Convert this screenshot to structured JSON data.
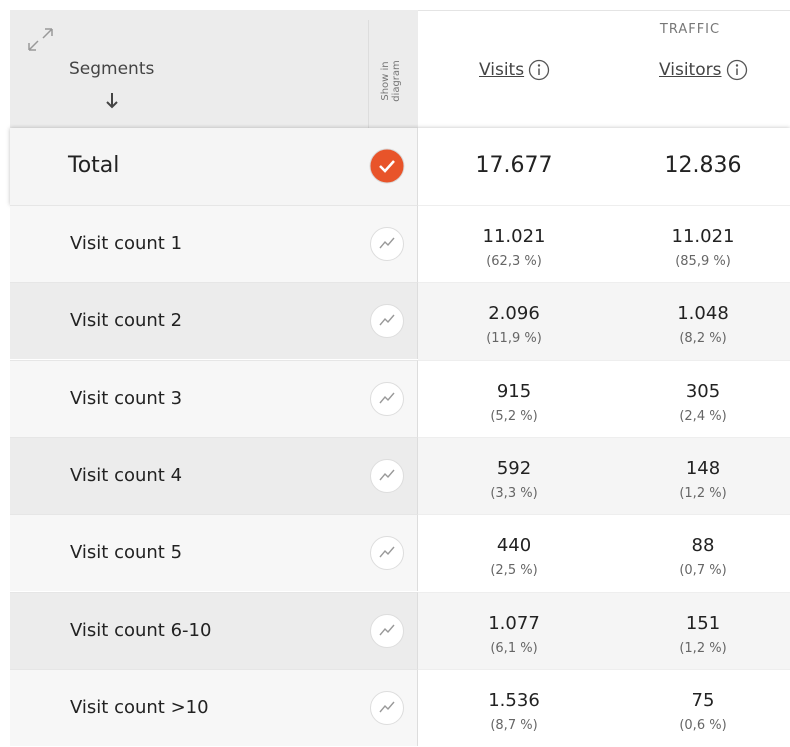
{
  "header": {
    "segments": "Segments",
    "show_in_diagram": "Show in diagram",
    "group": "TRAFFIC",
    "columns": [
      "Visits",
      "Visitors"
    ]
  },
  "total": {
    "label": "Total",
    "visits": "17.677",
    "visitors": "12.836"
  },
  "rows": [
    {
      "label": "Visit count 1",
      "visits": "11.021",
      "visits_share": "(62,3 %)",
      "visitors": "11.021",
      "visitors_share": "(85,9 %)"
    },
    {
      "label": "Visit count 2",
      "visits": "2.096",
      "visits_share": "(11,9 %)",
      "visitors": "1.048",
      "visitors_share": "(8,2 %)"
    },
    {
      "label": "Visit count 3",
      "visits": "915",
      "visits_share": "(5,2 %)",
      "visitors": "305",
      "visitors_share": "(2,4 %)"
    },
    {
      "label": "Visit count 4",
      "visits": "592",
      "visits_share": "(3,3 %)",
      "visitors": "148",
      "visitors_share": "(1,2 %)"
    },
    {
      "label": "Visit count 5",
      "visits": "440",
      "visits_share": "(2,5 %)",
      "visitors": "88",
      "visitors_share": "(0,7 %)"
    },
    {
      "label": "Visit count 6-10",
      "visits": "1.077",
      "visits_share": "(6,1 %)",
      "visitors": "151",
      "visitors_share": "(1,2 %)"
    },
    {
      "label": "Visit count >10",
      "visits": "1.536",
      "visits_share": "(8,7 %)",
      "visitors": "75",
      "visitors_share": "(0,6 %)"
    }
  ]
}
